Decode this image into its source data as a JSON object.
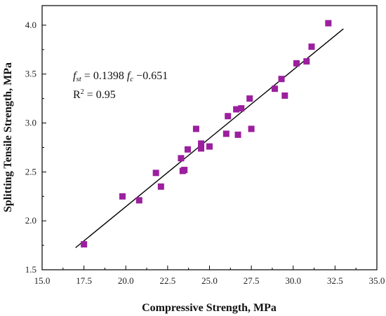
{
  "chart_data": {
    "type": "scatter",
    "xlabel": "Compressive Strength, MPa",
    "ylabel": "Splitting Tensile Strength, MPa",
    "xlim": [
      15.0,
      35.0
    ],
    "ylim": [
      1.5,
      4.2
    ],
    "xticks": [
      "15.0",
      "17.5",
      "20.0",
      "22.5",
      "25.0",
      "27.5",
      "30.0",
      "32.5",
      "35.0"
    ],
    "yticks": [
      "1.5",
      "2.0",
      "2.5",
      "3.0",
      "3.5",
      "4.0"
    ],
    "marker_color": "#9b1f9e",
    "line_color": "#000000",
    "points": [
      {
        "x": 17.5,
        "y": 1.76
      },
      {
        "x": 19.8,
        "y": 2.25
      },
      {
        "x": 20.8,
        "y": 2.21
      },
      {
        "x": 21.8,
        "y": 2.49
      },
      {
        "x": 22.1,
        "y": 2.35
      },
      {
        "x": 23.3,
        "y": 2.64
      },
      {
        "x": 23.4,
        "y": 2.51
      },
      {
        "x": 23.5,
        "y": 2.52
      },
      {
        "x": 23.7,
        "y": 2.73
      },
      {
        "x": 24.2,
        "y": 2.94
      },
      {
        "x": 24.5,
        "y": 2.74
      },
      {
        "x": 24.5,
        "y": 2.79
      },
      {
        "x": 25.0,
        "y": 2.76
      },
      {
        "x": 26.0,
        "y": 2.89
      },
      {
        "x": 26.1,
        "y": 3.07
      },
      {
        "x": 26.6,
        "y": 3.14
      },
      {
        "x": 26.7,
        "y": 2.88
      },
      {
        "x": 26.9,
        "y": 3.15
      },
      {
        "x": 27.4,
        "y": 3.25
      },
      {
        "x": 27.5,
        "y": 2.94
      },
      {
        "x": 28.9,
        "y": 3.35
      },
      {
        "x": 29.3,
        "y": 3.45
      },
      {
        "x": 29.5,
        "y": 3.28
      },
      {
        "x": 30.2,
        "y": 3.61
      },
      {
        "x": 30.8,
        "y": 3.63
      },
      {
        "x": 31.1,
        "y": 3.78
      },
      {
        "x": 32.1,
        "y": 4.02
      }
    ],
    "fit": {
      "slope": 0.1398,
      "intercept": -0.651,
      "x_start": 17.0,
      "x_end": 33.0
    },
    "annotations": {
      "eq_sub1": "st",
      "eq_mid": " = 0.1398 ",
      "eq_sub2": "c",
      "eq_tail": " −0.651",
      "r2_tail": " = 0.95",
      "f_symbol": "f",
      "r_symbol": "R",
      "r_exp": "2"
    }
  }
}
